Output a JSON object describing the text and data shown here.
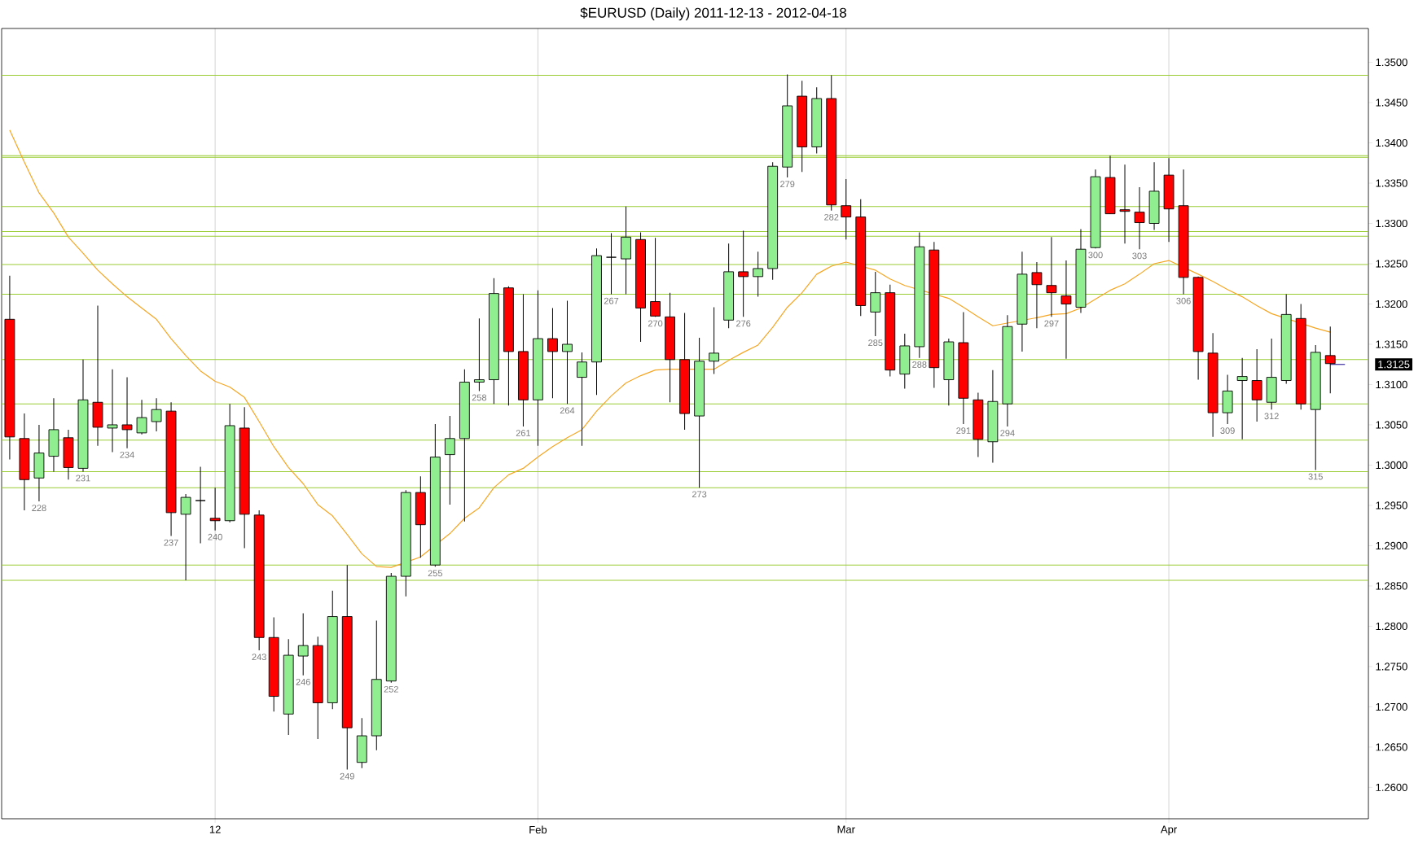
{
  "chart_data": {
    "type": "candlestick",
    "title": "$EURUSD (Daily)  2011-12-13 - 2012-04-18",
    "categories": [
      null,
      null,
      null,
      null,
      null,
      null,
      null,
      null,
      null,
      null,
      null,
      null,
      null,
      null,
      "12",
      null,
      null,
      null,
      null,
      null,
      null,
      null,
      null,
      null,
      null,
      null,
      null,
      null,
      null,
      null,
      null,
      null,
      null,
      null,
      null,
      null,
      "Feb",
      null,
      null,
      null,
      null,
      null,
      null,
      null,
      null,
      null,
      null,
      null,
      null,
      null,
      null,
      null,
      null,
      null,
      null,
      null,
      null,
      "Mar",
      null,
      null,
      null,
      null,
      null,
      null,
      null,
      null,
      null,
      null,
      null,
      null,
      null,
      null,
      null,
      null,
      null,
      null,
      null,
      null,
      null,
      "Apr",
      null,
      null,
      null,
      null,
      null,
      null,
      null,
      null,
      null,
      null,
      null,
      null
    ],
    "ohlc": [
      [
        1.3181,
        1.3235,
        1.3007,
        1.3035
      ],
      [
        1.3033,
        1.3064,
        1.2944,
        1.2982
      ],
      [
        1.2984,
        1.305,
        1.2955,
        1.3015
      ],
      [
        1.3011,
        1.3083,
        1.2992,
        1.3044
      ],
      [
        1.3034,
        1.3044,
        1.2982,
        1.2997
      ],
      [
        1.2996,
        1.3131,
        1.2992,
        1.3081
      ],
      [
        1.3078,
        1.3198,
        1.3024,
        1.3047
      ],
      [
        1.3046,
        1.3119,
        1.3016,
        1.305
      ],
      [
        1.305,
        1.3109,
        1.3021,
        1.3044
      ],
      [
        1.304,
        1.3081,
        1.3038,
        1.3059
      ],
      [
        1.3054,
        1.3083,
        1.3042,
        1.3069
      ],
      [
        1.3067,
        1.3078,
        1.2912,
        1.2941
      ],
      [
        1.2939,
        1.2964,
        1.2857,
        1.296
      ],
      [
        1.2956,
        1.2998,
        1.2903,
        1.2956
      ],
      [
        1.2934,
        1.2972,
        1.2919,
        1.2931
      ],
      [
        1.2931,
        1.3076,
        1.2929,
        1.3049
      ],
      [
        1.3046,
        1.3072,
        1.2897,
        1.2939
      ],
      [
        1.2938,
        1.2944,
        1.277,
        1.2786
      ],
      [
        1.2786,
        1.2811,
        1.2694,
        1.2713
      ],
      [
        1.2691,
        1.2784,
        1.2665,
        1.2764
      ],
      [
        1.2763,
        1.2816,
        1.2739,
        1.2776
      ],
      [
        1.2776,
        1.2787,
        1.266,
        1.2705
      ],
      [
        1.2705,
        1.2844,
        1.2697,
        1.2812
      ],
      [
        1.2812,
        1.2876,
        1.2622,
        1.2674
      ],
      [
        1.2631,
        1.2686,
        1.2624,
        1.2664
      ],
      [
        1.2664,
        1.2807,
        1.2646,
        1.2734
      ],
      [
        1.2732,
        1.2866,
        1.273,
        1.2862
      ],
      [
        1.2862,
        1.2969,
        1.2837,
        1.2966
      ],
      [
        1.2966,
        1.2986,
        1.2885,
        1.2926
      ],
      [
        1.2876,
        1.3051,
        1.2874,
        1.301
      ],
      [
        1.3013,
        1.3061,
        1.2951,
        1.3033
      ],
      [
        1.3033,
        1.3119,
        1.293,
        1.3103
      ],
      [
        1.3103,
        1.3182,
        1.3092,
        1.3106
      ],
      [
        1.3106,
        1.3232,
        1.3076,
        1.3213
      ],
      [
        1.322,
        1.3222,
        1.3074,
        1.3141
      ],
      [
        1.3141,
        1.3212,
        1.3048,
        1.3081
      ],
      [
        1.3081,
        1.3217,
        1.3024,
        1.3157
      ],
      [
        1.3157,
        1.3195,
        1.3083,
        1.3141
      ],
      [
        1.3141,
        1.3204,
        1.3076,
        1.315
      ],
      [
        1.3109,
        1.314,
        1.3024,
        1.3128
      ],
      [
        1.3128,
        1.3269,
        1.3087,
        1.326
      ],
      [
        1.3258,
        1.3288,
        1.3212,
        1.3258
      ],
      [
        1.3256,
        1.3321,
        1.3212,
        1.3283
      ],
      [
        1.328,
        1.3289,
        1.3153,
        1.3195
      ],
      [
        1.3203,
        1.3282,
        1.3184,
        1.3185
      ],
      [
        1.3184,
        1.3214,
        1.3078,
        1.3131
      ],
      [
        1.3131,
        1.3189,
        1.3044,
        1.3064
      ],
      [
        1.3061,
        1.3158,
        1.2972,
        1.3129
      ],
      [
        1.3129,
        1.3196,
        1.3113,
        1.3139
      ],
      [
        1.318,
        1.3275,
        1.317,
        1.324
      ],
      [
        1.324,
        1.3291,
        1.3184,
        1.3234
      ],
      [
        1.3234,
        1.3265,
        1.3209,
        1.3244
      ],
      [
        1.3244,
        1.3376,
        1.323,
        1.3371
      ],
      [
        1.337,
        1.3485,
        1.3357,
        1.3446
      ],
      [
        1.3458,
        1.3477,
        1.3364,
        1.3395
      ],
      [
        1.3395,
        1.3469,
        1.3387,
        1.3455
      ],
      [
        1.3455,
        1.3484,
        1.3316,
        1.3323
      ],
      [
        1.3322,
        1.3355,
        1.328,
        1.3308
      ],
      [
        1.3308,
        1.333,
        1.3185,
        1.3198
      ],
      [
        1.319,
        1.324,
        1.316,
        1.3214
      ],
      [
        1.3214,
        1.3224,
        1.311,
        1.3118
      ],
      [
        1.3113,
        1.3163,
        1.3095,
        1.3148
      ],
      [
        1.3147,
        1.3289,
        1.3133,
        1.3271
      ],
      [
        1.3267,
        1.3277,
        1.3096,
        1.3121
      ],
      [
        1.3106,
        1.3157,
        1.3074,
        1.3153
      ],
      [
        1.3152,
        1.319,
        1.3051,
        1.3083
      ],
      [
        1.3081,
        1.309,
        1.301,
        1.3032
      ],
      [
        1.3029,
        1.3118,
        1.3003,
        1.3079
      ],
      [
        1.3076,
        1.3186,
        1.3048,
        1.3172
      ],
      [
        1.3175,
        1.3265,
        1.3141,
        1.3237
      ],
      [
        1.3239,
        1.3252,
        1.317,
        1.3224
      ],
      [
        1.3223,
        1.3283,
        1.3184,
        1.3214
      ],
      [
        1.321,
        1.3254,
        1.3132,
        1.32
      ],
      [
        1.3196,
        1.3293,
        1.3189,
        1.3268
      ],
      [
        1.327,
        1.3367,
        1.3269,
        1.3358
      ],
      [
        1.3357,
        1.3384,
        1.3312,
        1.3312
      ],
      [
        1.3317,
        1.3373,
        1.3275,
        1.3315
      ],
      [
        1.3314,
        1.3345,
        1.3268,
        1.3301
      ],
      [
        1.33,
        1.3376,
        1.3292,
        1.334
      ],
      [
        1.336,
        1.3381,
        1.3277,
        1.3318
      ],
      [
        1.3322,
        1.3367,
        1.3212,
        1.3233
      ],
      [
        1.3233,
        1.3234,
        1.3106,
        1.3141
      ],
      [
        1.3139,
        1.3164,
        1.3035,
        1.3065
      ],
      [
        1.3065,
        1.3112,
        1.3051,
        1.3092
      ],
      [
        1.3105,
        1.3133,
        1.3032,
        1.311
      ],
      [
        1.3105,
        1.3144,
        1.3054,
        1.3081
      ],
      [
        1.3078,
        1.3157,
        1.3069,
        1.3109
      ],
      [
        1.3105,
        1.3212,
        1.3101,
        1.3187
      ],
      [
        1.3182,
        1.32,
        1.3069,
        1.3076
      ],
      [
        1.3069,
        1.3149,
        1.2994,
        1.314
      ],
      [
        1.3136,
        1.3172,
        1.3089,
        1.3126
      ],
      null
    ],
    "colors": [
      "#ff0000",
      "#ff0000",
      "#90ee90",
      "#90ee90",
      "#ff0000",
      "#90ee90",
      "#ff0000",
      "#90ee90",
      "#ff0000",
      "#90ee90",
      "#90ee90",
      "#ff0000",
      "#90ee90",
      "#000000",
      "#ff0000",
      "#90ee90",
      "#ff0000",
      "#ff0000",
      "#ff0000",
      "#90ee90",
      "#90ee90",
      "#ff0000",
      "#90ee90",
      "#ff0000",
      "#90ee90",
      "#90ee90",
      "#90ee90",
      "#90ee90",
      "#ff0000",
      "#90ee90",
      "#90ee90",
      "#90ee90",
      "#90ee90",
      "#90ee90",
      "#ff0000",
      "#ff0000",
      "#90ee90",
      "#ff0000",
      "#90ee90",
      "#90ee90",
      "#90ee90",
      "#000000",
      "#90ee90",
      "#ff0000",
      "#ff0000",
      "#ff0000",
      "#ff0000",
      "#90ee90",
      "#90ee90",
      "#90ee90",
      "#ff0000",
      "#90ee90",
      "#90ee90",
      "#90ee90",
      "#ff0000",
      "#90ee90",
      "#ff0000",
      "#ff0000",
      "#ff0000",
      "#90ee90",
      "#ff0000",
      "#90ee90",
      "#90ee90",
      "#ff0000",
      "#90ee90",
      "#ff0000",
      "#ff0000",
      "#90ee90",
      "#90ee90",
      "#90ee90",
      "#ff0000",
      "#ff0000",
      "#ff0000",
      "#90ee90",
      "#90ee90",
      "#ff0000",
      "#ff0000",
      "#ff0000",
      "#90ee90",
      "#ff0000",
      "#ff0000",
      "#ff0000",
      "#ff0000",
      "#90ee90",
      "#90ee90",
      "#ff0000",
      "#90ee90",
      "#90ee90",
      "#ff0000",
      "#90ee90",
      "#ff0000",
      null
    ],
    "value_labels": [
      null,
      null,
      "228",
      null,
      null,
      "231",
      null,
      null,
      "234",
      null,
      null,
      "237",
      null,
      null,
      "240",
      null,
      null,
      "243",
      null,
      null,
      "246",
      null,
      null,
      "249",
      null,
      null,
      "252",
      null,
      null,
      "255",
      null,
      null,
      "258",
      null,
      null,
      "261",
      null,
      null,
      "264",
      null,
      null,
      "267",
      null,
      null,
      "270",
      null,
      null,
      "273",
      null,
      null,
      "276",
      null,
      null,
      "279",
      null,
      null,
      "282",
      null,
      null,
      "285",
      null,
      null,
      "288",
      null,
      null,
      "291",
      null,
      null,
      "294",
      null,
      null,
      "297",
      null,
      null,
      "300",
      null,
      null,
      "303",
      null,
      null,
      "306",
      null,
      null,
      "309",
      null,
      null,
      "312",
      null,
      null,
      "315",
      null,
      null
    ],
    "series": [
      {
        "type": "line",
        "color": "#f5a623",
        "values": [
          1.3416,
          1.3376,
          1.3338,
          1.3313,
          1.3283,
          1.3263,
          1.3242,
          1.3225,
          1.3209,
          1.3195,
          1.3181,
          1.3157,
          1.3136,
          1.3117,
          1.3104,
          1.3097,
          1.3084,
          1.3054,
          1.3023,
          1.2997,
          1.2977,
          1.2951,
          1.2937,
          1.2914,
          1.289,
          1.2874,
          1.2873,
          null,
          1.2886,
          null,
          1.2915,
          1.2934,
          1.2947,
          1.2972,
          1.2988,
          1.2996,
          1.301,
          1.3023,
          1.3034,
          1.3044,
          1.3067,
          1.3086,
          1.3102,
          1.3111,
          1.3118,
          1.3119,
          null,
          null,
          1.3119,
          1.313,
          1.314,
          1.3149,
          1.3171,
          1.3196,
          1.3214,
          1.3237,
          1.3247,
          1.3252,
          null,
          1.3242,
          1.3231,
          1.3223,
          null,
          null,
          1.3207,
          1.3196,
          1.3184,
          1.3173,
          null,
          null,
          1.3183,
          1.3187,
          1.3188,
          1.3195,
          1.3206,
          1.3217,
          1.3225,
          1.3237,
          1.325,
          1.3254,
          null,
          1.3237,
          1.3228,
          1.3218,
          1.3209,
          1.3198,
          1.3188,
          null,
          null,
          1.317,
          1.3165,
          null
        ]
      },
      {
        "type": "line",
        "color": "#3c2f9f",
        "values": [
          null,
          null,
          null,
          null,
          null,
          null,
          null,
          null,
          null,
          null,
          null,
          null,
          null,
          null,
          null,
          null,
          null,
          null,
          null,
          null,
          null,
          null,
          null,
          null,
          null,
          null,
          null,
          null,
          null,
          null,
          null,
          null,
          null,
          null,
          null,
          null,
          null,
          null,
          null,
          null,
          null,
          null,
          null,
          null,
          null,
          null,
          null,
          null,
          null,
          null,
          null,
          null,
          null,
          null,
          null,
          null,
          null,
          null,
          null,
          null,
          null,
          null,
          null,
          null,
          null,
          null,
          null,
          null,
          null,
          null,
          null,
          null,
          null,
          null,
          null,
          null,
          null,
          null,
          null,
          null,
          null,
          null,
          null,
          null,
          null,
          null,
          null,
          null,
          null,
          null,
          1.3125,
          1.3125
        ]
      }
    ],
    "ylim": [
      1.2561,
      1.3542
    ],
    "yticks": [
      {
        "value": 1.26,
        "label": "1.2600"
      },
      {
        "value": 1.265,
        "label": "1.2650"
      },
      {
        "value": 1.27,
        "label": "1.2700"
      },
      {
        "value": 1.275,
        "label": "1.2750"
      },
      {
        "value": 1.28,
        "label": "1.2800"
      },
      {
        "value": 1.285,
        "label": "1.2850"
      },
      {
        "value": 1.29,
        "label": "1.2900"
      },
      {
        "value": 1.295,
        "label": "1.2950"
      },
      {
        "value": 1.3,
        "label": "1.3000"
      },
      {
        "value": 1.305,
        "label": "1.3050"
      },
      {
        "value": 1.31,
        "label": "1.3100"
      },
      {
        "value": 1.315,
        "label": "1.3150"
      },
      {
        "value": 1.32,
        "label": "1.3200"
      },
      {
        "value": 1.325,
        "label": "1.3250"
      },
      {
        "value": 1.33,
        "label": "1.3300"
      },
      {
        "value": 1.335,
        "label": "1.3350"
      },
      {
        "value": 1.34,
        "label": "1.3400"
      },
      {
        "value": 1.345,
        "label": "1.3450"
      },
      {
        "value": 1.35,
        "label": "1.3500"
      }
    ],
    "grid": "x",
    "ref_lines": [
      {
        "axis": "y",
        "value": 1.3484,
        "color": "#99cc33"
      },
      {
        "axis": "y",
        "value": 1.3384,
        "color": "#99cc33"
      },
      {
        "axis": "y",
        "value": 1.3382,
        "color": "#99cc33"
      },
      {
        "axis": "y",
        "value": 1.3321,
        "color": "#99cc33"
      },
      {
        "axis": "y",
        "value": 1.329,
        "color": "#99cc33"
      },
      {
        "axis": "y",
        "value": 1.3284,
        "color": "#99cc33"
      },
      {
        "axis": "y",
        "value": 1.3249,
        "color": "#99cc33"
      },
      {
        "axis": "y",
        "value": 1.3212,
        "color": "#99cc33"
      },
      {
        "axis": "y",
        "value": 1.3131,
        "color": "#99cc33"
      },
      {
        "axis": "y",
        "value": 1.3076,
        "color": "#99cc33"
      },
      {
        "axis": "y",
        "value": 1.3031,
        "color": "#99cc33"
      },
      {
        "axis": "y",
        "value": 1.2992,
        "color": "#99cc33"
      },
      {
        "axis": "y",
        "value": 1.2972,
        "color": "#99cc33"
      },
      {
        "axis": "y",
        "value": 1.2876,
        "color": "#99cc33"
      },
      {
        "axis": "y",
        "value": 1.2857,
        "color": "#99cc33"
      }
    ],
    "annotations": [
      "1.3125"
    ]
  }
}
